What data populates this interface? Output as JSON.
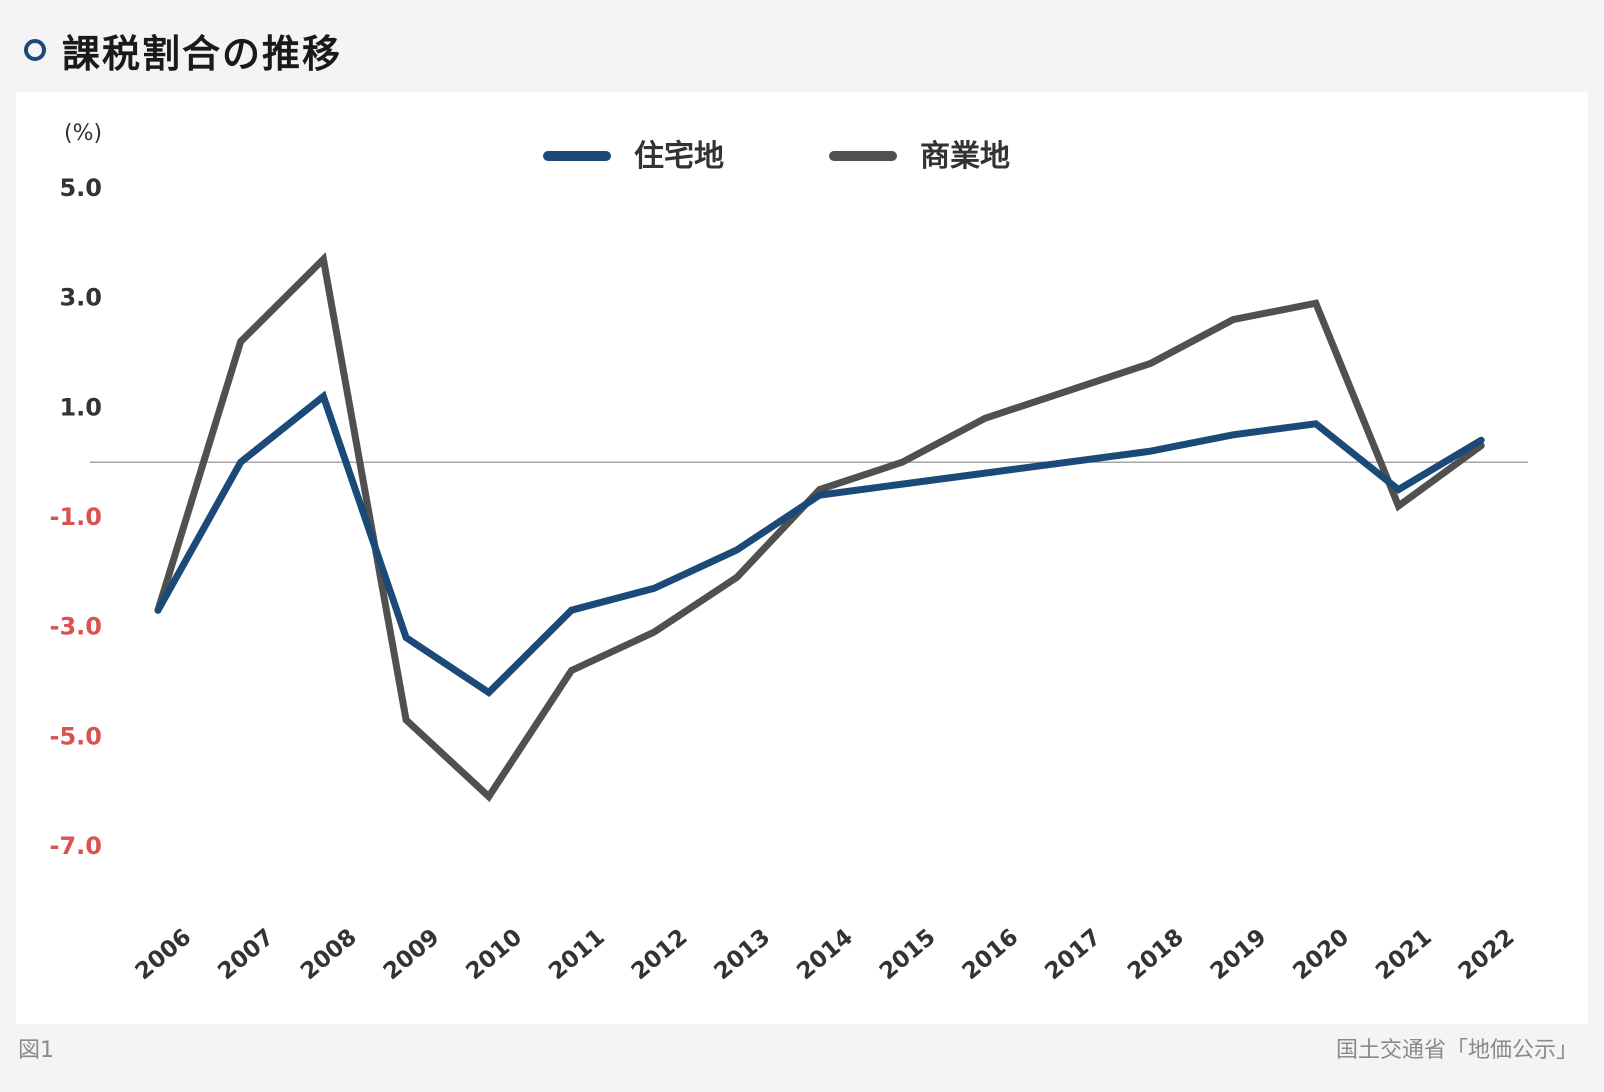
{
  "header": {
    "title": "課税割合の推移"
  },
  "footer": {
    "figure_label": "図1",
    "source": "国土交通省「地価公示」"
  },
  "colors": {
    "residential": "#1b4a78",
    "commercial": "#505050",
    "negative_tick": "#d9534f",
    "tick": "#333333"
  },
  "chart_data": {
    "type": "line",
    "unit_label": "(%)",
    "ylim": [
      -7.0,
      5.0
    ],
    "yticks": [
      "5.0",
      "3.0",
      "1.0",
      "-1.0",
      "-3.0",
      "-5.0",
      "-7.0"
    ],
    "ytick_values": [
      5.0,
      3.0,
      1.0,
      -1.0,
      -3.0,
      -5.0,
      -7.0
    ],
    "zero_line": true,
    "legend_position": "top-center",
    "categories": [
      "2006",
      "2007",
      "2008",
      "2009",
      "2010",
      "2011",
      "2012",
      "2013",
      "2014",
      "2015",
      "2016",
      "2017",
      "2018",
      "2019",
      "2020",
      "2021",
      "2022"
    ],
    "series": [
      {
        "name": "住宅地",
        "color": "#1b4a78",
        "values": [
          -2.7,
          0.0,
          1.2,
          -3.2,
          -4.2,
          -2.7,
          -2.3,
          -1.6,
          -0.6,
          -0.4,
          -0.2,
          0.0,
          0.2,
          0.5,
          0.7,
          -0.5,
          0.4
        ]
      },
      {
        "name": "商業地",
        "color": "#505050",
        "values": [
          -2.7,
          2.2,
          3.7,
          -4.7,
          -6.1,
          -3.8,
          -3.1,
          -2.1,
          -0.5,
          0.0,
          0.8,
          1.3,
          1.8,
          2.6,
          2.9,
          -0.8,
          0.3
        ]
      }
    ]
  }
}
